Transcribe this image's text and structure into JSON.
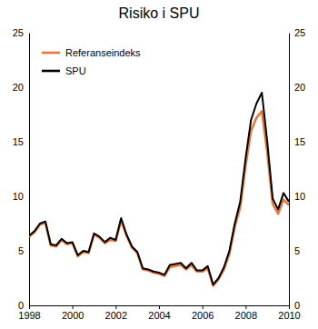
{
  "chart_data": {
    "type": "line",
    "title": "Risiko i SPU",
    "x": [
      1998,
      1998.25,
      1998.5,
      1998.75,
      1999,
      1999.25,
      1999.5,
      1999.75,
      2000,
      2000.25,
      2000.5,
      2000.75,
      2001,
      2001.25,
      2001.5,
      2001.75,
      2002,
      2002.25,
      2002.5,
      2002.75,
      2003,
      2003.25,
      2003.5,
      2003.75,
      2004,
      2004.25,
      2004.5,
      2004.75,
      2005,
      2005.25,
      2005.5,
      2005.75,
      2006,
      2006.25,
      2006.5,
      2006.75,
      2007,
      2007.25,
      2007.5,
      2007.75,
      2008,
      2008.25,
      2008.5,
      2008.75,
      2009,
      2009.25,
      2009.5,
      2009.75,
      2010
    ],
    "series": [
      {
        "name": "Referanseindeks",
        "color": "#e8773a",
        "values": [
          6.3,
          6.7,
          7.4,
          7.6,
          5.5,
          5.4,
          6.0,
          5.6,
          5.7,
          4.5,
          4.9,
          4.8,
          6.5,
          6.2,
          5.7,
          6.0,
          5.9,
          7.8,
          6.4,
          5.3,
          4.8,
          3.3,
          3.2,
          3.0,
          2.9,
          2.7,
          3.5,
          3.6,
          3.7,
          3.3,
          3.7,
          3.1,
          3.1,
          3.4,
          1.8,
          2.4,
          3.3,
          4.7,
          7.2,
          9.0,
          12.8,
          16.0,
          17.2,
          17.8,
          14.0,
          9.3,
          8.4,
          9.7,
          9.2
        ]
      },
      {
        "name": "SPU",
        "color": "#000000",
        "values": [
          6.4,
          6.8,
          7.5,
          7.7,
          5.6,
          5.5,
          6.1,
          5.7,
          5.8,
          4.6,
          5.0,
          4.9,
          6.6,
          6.3,
          5.8,
          6.2,
          6.0,
          8.0,
          6.5,
          5.4,
          4.9,
          3.4,
          3.3,
          3.1,
          3.0,
          2.8,
          3.7,
          3.8,
          3.9,
          3.4,
          3.9,
          3.2,
          3.2,
          3.6,
          1.9,
          2.5,
          3.5,
          5.0,
          7.5,
          9.5,
          13.5,
          17.0,
          18.5,
          19.5,
          15.0,
          9.8,
          8.8,
          10.3,
          9.5
        ]
      }
    ],
    "xlim": [
      1998,
      2010
    ],
    "xticks": [
      1998,
      2000,
      2002,
      2004,
      2006,
      2008,
      2010
    ],
    "ylim": [
      0,
      25
    ],
    "yticks": [
      0,
      5,
      10,
      15,
      20,
      25
    ],
    "grid": false,
    "legend": "upper left"
  }
}
